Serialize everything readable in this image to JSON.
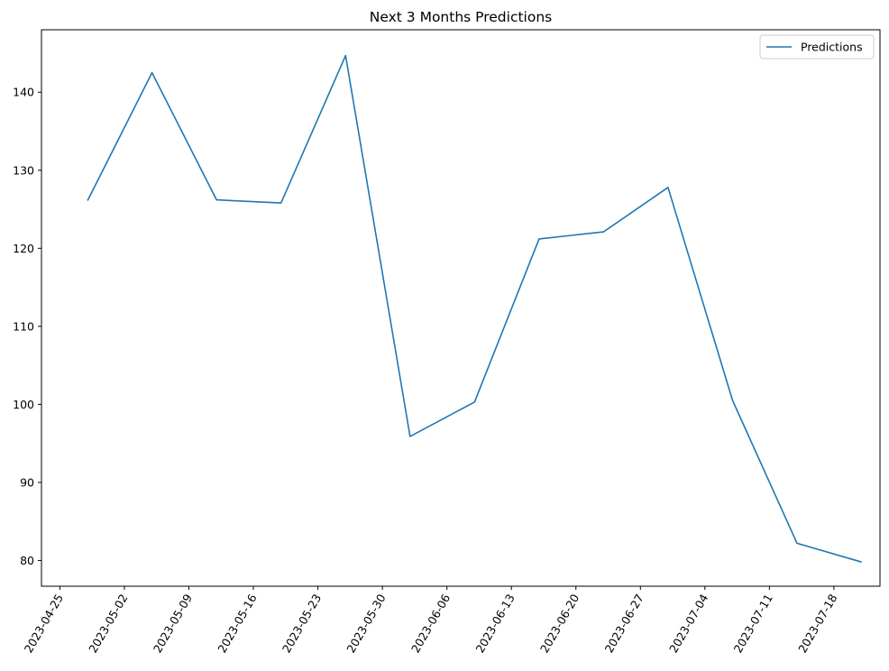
{
  "chart_data": {
    "type": "line",
    "title": "Next 3 Months Predictions",
    "xlabel": "",
    "ylabel": "",
    "x_ticks": [
      "2023-04-25",
      "2023-05-02",
      "2023-05-09",
      "2023-05-16",
      "2023-05-23",
      "2023-05-30",
      "2023-06-06",
      "2023-06-13",
      "2023-06-20",
      "2023-06-27",
      "2023-07-04",
      "2023-07-11",
      "2023-07-18"
    ],
    "y_ticks": [
      80,
      90,
      100,
      110,
      120,
      130,
      140
    ],
    "xlim": [
      "2023-04-23",
      "2023-07-23"
    ],
    "ylim": [
      76.7,
      148.0
    ],
    "grid": false,
    "legend": "top-right",
    "series": [
      {
        "name": "Predictions",
        "color": "#1f77b4",
        "x": [
          "2023-04-28",
          "2023-05-05",
          "2023-05-12",
          "2023-05-19",
          "2023-05-26",
          "2023-06-02",
          "2023-06-09",
          "2023-06-16",
          "2023-06-23",
          "2023-06-30",
          "2023-07-07",
          "2023-07-14",
          "2023-07-21"
        ],
        "y": [
          126.1,
          142.5,
          126.2,
          125.8,
          144.7,
          95.9,
          100.3,
          121.2,
          122.1,
          127.8,
          100.5,
          82.2,
          79.8
        ]
      }
    ]
  }
}
